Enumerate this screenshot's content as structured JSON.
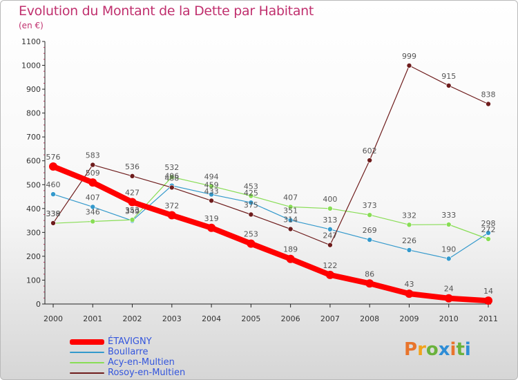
{
  "page": {
    "title": "Evolution du Montant de la Dette par Habitant",
    "subtitle": "(en €)"
  },
  "logo": {
    "text": "Proxiti",
    "colors": [
      "#e8742c",
      "#f2a31c",
      "#6ab23c",
      "#2e8dd6",
      "#e8742c",
      "#6ab23c",
      "#2e8dd6"
    ]
  },
  "colors": {
    "title": "#c0306e",
    "axis": "#222222",
    "tick_text": "#333333",
    "label_text": "#555555"
  },
  "chart_data": {
    "type": "line",
    "title": "Evolution du Montant de la Dette par Habitant",
    "subtitle": "(en €)",
    "xlabel": "",
    "ylabel": "",
    "x": [
      "2000",
      "2001",
      "2002",
      "2003",
      "2004",
      "2005",
      "2006",
      "2007",
      "2008",
      "2009",
      "2010",
      "2011"
    ],
    "ylim": [
      0,
      1100
    ],
    "yticks": [
      0,
      100,
      200,
      300,
      400,
      500,
      600,
      700,
      800,
      900,
      1000,
      1100
    ],
    "grid": false,
    "legend_position": "bottom-left",
    "series": [
      {
        "name": "ÉTAVIGNY",
        "color": "#ff0000",
        "values": [
          576,
          509,
          427,
          372,
          319,
          253,
          189,
          122,
          86,
          43,
          24,
          14
        ]
      },
      {
        "name": "Boullarre",
        "color": "#3399cc",
        "values": [
          460,
          407,
          349,
          496,
          459,
          425,
          351,
          313,
          269,
          226,
          190,
          298
        ]
      },
      {
        "name": "Acy-en-Multien",
        "color": "#88dd55",
        "values": [
          338,
          346,
          353,
          532,
          494,
          453,
          407,
          400,
          373,
          332,
          333,
          272
        ]
      },
      {
        "name": "Rosoy-en-Multien",
        "color": "#6e1c1c",
        "values": [
          339,
          583,
          536,
          488,
          433,
          375,
          314,
          247,
          602,
          999,
          915,
          838
        ]
      }
    ]
  }
}
